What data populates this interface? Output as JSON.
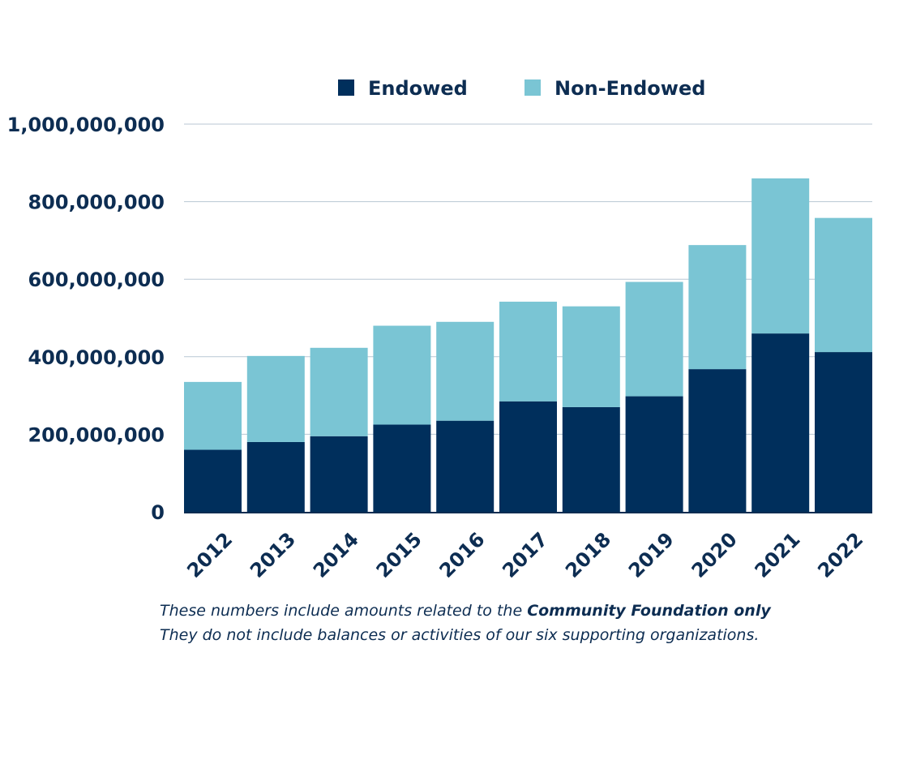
{
  "colors": {
    "endowed": "#002f5c",
    "non_endowed": "#7ac5d4",
    "text": "#0d2d52",
    "grid": "#b8c7d3",
    "axis": "#0d2d52"
  },
  "chart_data": {
    "type": "bar",
    "stacked": true,
    "title": "",
    "xlabel": "",
    "ylabel": "",
    "categories": [
      "2012",
      "2013",
      "2014",
      "2015",
      "2016",
      "2017",
      "2018",
      "2019",
      "2020",
      "2021",
      "2022"
    ],
    "series": [
      {
        "name": "Endowed",
        "values": [
          160000000,
          180000000,
          195000000,
          225000000,
          235000000,
          285000000,
          270000000,
          298000000,
          368000000,
          460000000,
          412000000
        ]
      },
      {
        "name": "Non-Endowed",
        "values": [
          175000000,
          222000000,
          228000000,
          255000000,
          255000000,
          257000000,
          260000000,
          295000000,
          320000000,
          400000000,
          346000000
        ]
      }
    ],
    "ylim": [
      0,
      1000000000
    ],
    "y_ticks": [
      0,
      200000000,
      400000000,
      600000000,
      800000000,
      1000000000
    ],
    "y_tick_labels": [
      "0",
      "200,000,000",
      "400,000,000",
      "600,000,000",
      "800,000,000",
      "1,000,000,000"
    ],
    "grid": true,
    "legend_position": "top-center"
  },
  "legend": {
    "endowed_label": "Endowed",
    "non_endowed_label": "Non-Endowed"
  },
  "footnote": {
    "line1_prefix": "These numbers include amounts related to the ",
    "line1_bold": "Community Foundation only",
    "line2": "They do not include balances or activities of our six supporting organizations."
  }
}
